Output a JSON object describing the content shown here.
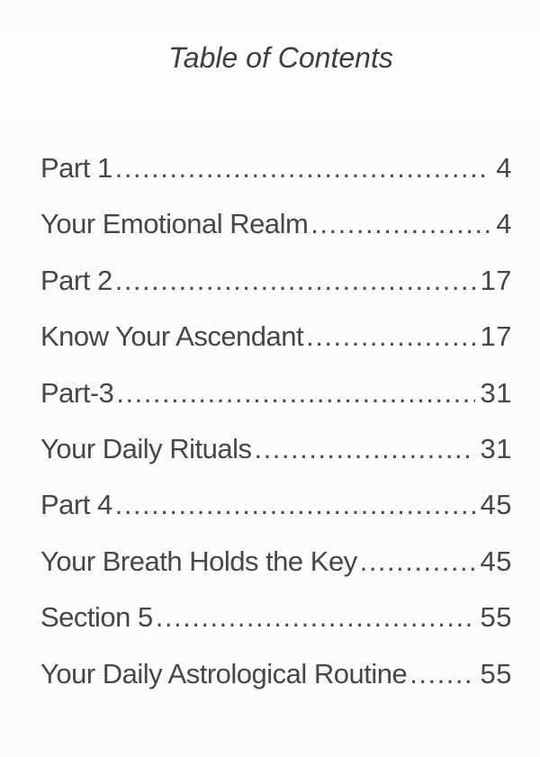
{
  "page": {
    "title": "Table of Contents"
  },
  "toc": {
    "entries": [
      {
        "label": "Part 1",
        "page": "4"
      },
      {
        "label": "Your Emotional Realm",
        "page": "4"
      },
      {
        "label": "Part 2",
        "page": "17"
      },
      {
        "label": "Know Your Ascendant",
        "page": "17"
      },
      {
        "label": "Part-3",
        "page": "31"
      },
      {
        "label": "Your Daily Rituals",
        "page": "31"
      },
      {
        "label": "Part 4",
        "page": "45"
      },
      {
        "label": "Your Breath Holds the Key",
        "page": "45"
      },
      {
        "label": "Section 5",
        "page": "55"
      },
      {
        "label": "Your Daily Astrological Routine",
        "page": "55"
      }
    ]
  },
  "colors": {
    "text": "#474747",
    "title": "#3e3e3e",
    "background": "#fcfcfc"
  }
}
